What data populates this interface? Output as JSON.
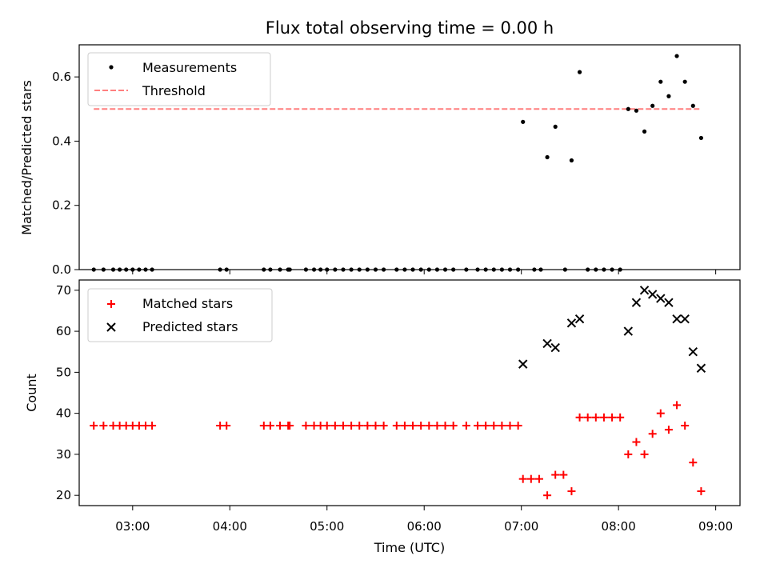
{
  "chart_data": [
    {
      "type": "scatter",
      "title": "Flux total observing time = 0.00 h",
      "ylabel": "Matched/Predicted stars",
      "ylim": [
        0,
        0.7
      ],
      "yticks": [
        "0.0",
        "0.2",
        "0.4",
        "0.6"
      ],
      "xlim": [
        "02:27",
        "09:15"
      ],
      "legend": "top-left",
      "series": [
        {
          "name": "Measurements",
          "kind": "scatter",
          "color": "#000000",
          "points": [
            [
              "02:36",
              0
            ],
            [
              "02:42",
              0
            ],
            [
              "02:48",
              0
            ],
            [
              "02:52",
              0
            ],
            [
              "02:56",
              0
            ],
            [
              "03:00",
              0
            ],
            [
              "03:04",
              0
            ],
            [
              "03:08",
              0
            ],
            [
              "03:12",
              0
            ],
            [
              "03:54",
              0
            ],
            [
              "03:58",
              0
            ],
            [
              "04:21",
              0
            ],
            [
              "04:25",
              0
            ],
            [
              "04:31",
              0
            ],
            [
              "04:36",
              0
            ],
            [
              "04:37",
              0
            ],
            [
              "04:47",
              0
            ],
            [
              "04:52",
              0
            ],
            [
              "04:56",
              0
            ],
            [
              "05:00",
              0
            ],
            [
              "05:05",
              0
            ],
            [
              "05:10",
              0
            ],
            [
              "05:15",
              0
            ],
            [
              "05:20",
              0
            ],
            [
              "05:25",
              0
            ],
            [
              "05:30",
              0
            ],
            [
              "05:35",
              0
            ],
            [
              "05:43",
              0
            ],
            [
              "05:48",
              0
            ],
            [
              "05:53",
              0
            ],
            [
              "05:58",
              0
            ],
            [
              "06:03",
              0
            ],
            [
              "06:08",
              0
            ],
            [
              "06:13",
              0
            ],
            [
              "06:18",
              0
            ],
            [
              "06:26",
              0
            ],
            [
              "06:33",
              0
            ],
            [
              "06:38",
              0
            ],
            [
              "06:43",
              0
            ],
            [
              "06:48",
              0
            ],
            [
              "06:53",
              0
            ],
            [
              "06:58",
              0
            ],
            [
              "07:01",
              0.46
            ],
            [
              "07:08",
              0
            ],
            [
              "07:12",
              0
            ],
            [
              "07:16",
              0.35
            ],
            [
              "07:21",
              0.445
            ],
            [
              "07:27",
              0
            ],
            [
              "07:31",
              0.34
            ],
            [
              "07:36",
              0.615
            ],
            [
              "07:41",
              0
            ],
            [
              "07:46",
              0
            ],
            [
              "07:51",
              0
            ],
            [
              "07:56",
              0
            ],
            [
              "08:01",
              0
            ],
            [
              "08:06",
              0.5
            ],
            [
              "08:11",
              0.495
            ],
            [
              "08:16",
              0.43
            ],
            [
              "08:21",
              0.51
            ],
            [
              "08:26",
              0.585
            ],
            [
              "08:31",
              0.54
            ],
            [
              "08:36",
              0.665
            ],
            [
              "08:41",
              0.585
            ],
            [
              "08:46",
              0.51
            ],
            [
              "08:51",
              0.41
            ]
          ]
        },
        {
          "name": "Threshold",
          "kind": "line",
          "dashed": true,
          "color": "#ff7f7f",
          "points": [
            [
              "02:36",
              0.5
            ],
            [
              "08:51",
              0.5
            ]
          ]
        }
      ]
    },
    {
      "type": "scatter",
      "xlabel": "Time (UTC)",
      "ylabel": "Count",
      "ylim": [
        17.5,
        72.5
      ],
      "yticks": [
        "20",
        "30",
        "40",
        "50",
        "60",
        "70"
      ],
      "xticks": [
        "03:00",
        "04:00",
        "05:00",
        "06:00",
        "07:00",
        "08:00",
        "09:00"
      ],
      "xlim": [
        "02:27",
        "09:15"
      ],
      "legend": "top-left",
      "series": [
        {
          "name": "Matched stars",
          "marker": "plus",
          "color": "#ff0000",
          "points": [
            [
              "02:36",
              37
            ],
            [
              "02:42",
              37
            ],
            [
              "02:48",
              37
            ],
            [
              "02:52",
              37
            ],
            [
              "02:56",
              37
            ],
            [
              "03:00",
              37
            ],
            [
              "03:04",
              37
            ],
            [
              "03:08",
              37
            ],
            [
              "03:12",
              37
            ],
            [
              "03:54",
              37
            ],
            [
              "03:58",
              37
            ],
            [
              "04:21",
              37
            ],
            [
              "04:25",
              37
            ],
            [
              "04:31",
              37
            ],
            [
              "04:36",
              37
            ],
            [
              "04:37",
              37
            ],
            [
              "04:47",
              37
            ],
            [
              "04:52",
              37
            ],
            [
              "04:56",
              37
            ],
            [
              "05:00",
              37
            ],
            [
              "05:05",
              37
            ],
            [
              "05:10",
              37
            ],
            [
              "05:15",
              37
            ],
            [
              "05:20",
              37
            ],
            [
              "05:25",
              37
            ],
            [
              "05:30",
              37
            ],
            [
              "05:35",
              37
            ],
            [
              "05:43",
              37
            ],
            [
              "05:48",
              37
            ],
            [
              "05:53",
              37
            ],
            [
              "05:58",
              37
            ],
            [
              "06:03",
              37
            ],
            [
              "06:08",
              37
            ],
            [
              "06:13",
              37
            ],
            [
              "06:18",
              37
            ],
            [
              "06:26",
              37
            ],
            [
              "06:33",
              37
            ],
            [
              "06:38",
              37
            ],
            [
              "06:43",
              37
            ],
            [
              "06:48",
              37
            ],
            [
              "06:53",
              37
            ],
            [
              "06:58",
              37
            ],
            [
              "07:01",
              24
            ],
            [
              "07:06",
              24
            ],
            [
              "07:11",
              24
            ],
            [
              "07:16",
              20
            ],
            [
              "07:21",
              25
            ],
            [
              "07:26",
              25
            ],
            [
              "07:31",
              21
            ],
            [
              "07:36",
              39
            ],
            [
              "07:41",
              39
            ],
            [
              "07:46",
              39
            ],
            [
              "07:51",
              39
            ],
            [
              "07:56",
              39
            ],
            [
              "08:01",
              39
            ],
            [
              "08:06",
              30
            ],
            [
              "08:11",
              33
            ],
            [
              "08:16",
              30
            ],
            [
              "08:21",
              35
            ],
            [
              "08:26",
              40
            ],
            [
              "08:31",
              36
            ],
            [
              "08:36",
              42
            ],
            [
              "08:41",
              37
            ],
            [
              "08:46",
              28
            ],
            [
              "08:51",
              21
            ]
          ]
        },
        {
          "name": "Predicted stars",
          "marker": "x",
          "color": "#000000",
          "points": [
            [
              "07:01",
              52
            ],
            [
              "07:16",
              57
            ],
            [
              "07:21",
              56
            ],
            [
              "07:31",
              62
            ],
            [
              "07:36",
              63
            ],
            [
              "08:06",
              60
            ],
            [
              "08:11",
              67
            ],
            [
              "08:16",
              70
            ],
            [
              "08:21",
              69
            ],
            [
              "08:26",
              68
            ],
            [
              "08:31",
              67
            ],
            [
              "08:36",
              63
            ],
            [
              "08:41",
              63
            ],
            [
              "08:46",
              55
            ],
            [
              "08:51",
              51
            ]
          ]
        }
      ]
    }
  ]
}
